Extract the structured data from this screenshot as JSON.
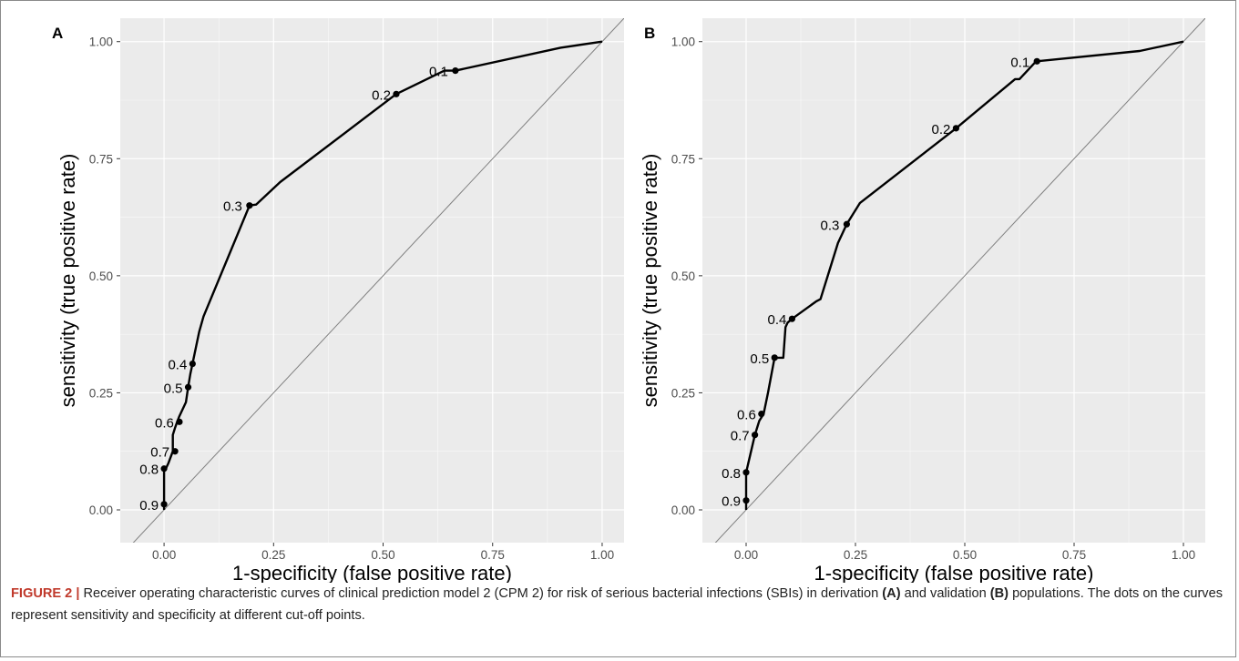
{
  "caption": {
    "label": "FIGURE 2 |",
    "part1": " Receiver operating characteristic curves of clinical prediction model 2 (CPM 2) for risk of serious bacterial infections (SBIs) in derivation ",
    "ref_a": "(A)",
    "part2": " and validation ",
    "ref_b": "(B)",
    "part3": " populations. The dots on the curves represent sensitivity and specificity at different cut-off points."
  },
  "colors": {
    "panel_bg": "#ebebeb",
    "grid_major": "#ffffff",
    "curve": "#000000",
    "diagonal": "#7f7f7f",
    "caption_label": "#c0392b"
  },
  "chart_data": [
    {
      "type": "line",
      "panel_label": "A",
      "xlabel": "1-specificity (false positive rate)",
      "ylabel": "sensitivity (true positive rate)",
      "xlim": [
        -0.1,
        1.05
      ],
      "ylim": [
        -0.07,
        1.05
      ],
      "xticks": [
        0,
        0.25,
        0.5,
        0.75,
        1
      ],
      "xtick_labels": [
        "0.00",
        "0.25",
        "0.50",
        "0.75",
        "1.00"
      ],
      "yticks": [
        0,
        0.25,
        0.5,
        0.75,
        1
      ],
      "ytick_labels": [
        "0.00",
        "0.25",
        "0.50",
        "0.75",
        "1.00"
      ],
      "grid": true,
      "reference_line": "diagonal",
      "curve": {
        "x": [
          0,
          0,
          0,
          0.005,
          0.01,
          0.02,
          0.02,
          0.025,
          0.03,
          0.035,
          0.05,
          0.055,
          0.06,
          0.065,
          0.08,
          0.09,
          0.195,
          0.21,
          0.265,
          0.53,
          0.64,
          0.665,
          0.905,
          1
        ],
        "y": [
          0,
          0.012,
          0.088,
          0.09,
          0.1,
          0.125,
          0.16,
          0.175,
          0.188,
          0.2,
          0.23,
          0.262,
          0.29,
          0.312,
          0.38,
          0.413,
          0.65,
          0.652,
          0.7,
          0.888,
          0.938,
          0.938,
          0.987,
          1
        ]
      },
      "cutoffs": {
        "labels": [
          "0.1",
          "0.2",
          "0.3",
          "0.4",
          "0.5",
          "0.6",
          "0.7",
          "0.8",
          "0.9"
        ],
        "x": [
          0.665,
          0.53,
          0.195,
          0.065,
          0.055,
          0.035,
          0.025,
          0,
          0
        ],
        "y": [
          0.938,
          0.888,
          0.65,
          0.312,
          0.262,
          0.188,
          0.125,
          0.088,
          0.012
        ]
      }
    },
    {
      "type": "line",
      "panel_label": "B",
      "xlabel": "1-specificity (false positive rate)",
      "ylabel": "sensitivity (true positive rate)",
      "xlim": [
        -0.1,
        1.05
      ],
      "ylim": [
        -0.07,
        1.05
      ],
      "xticks": [
        0,
        0.25,
        0.5,
        0.75,
        1
      ],
      "xtick_labels": [
        "0.00",
        "0.25",
        "0.50",
        "0.75",
        "1.00"
      ],
      "yticks": [
        0,
        0.25,
        0.5,
        0.75,
        1
      ],
      "ytick_labels": [
        "0.00",
        "0.25",
        "0.50",
        "0.75",
        "1.00"
      ],
      "grid": true,
      "reference_line": "diagonal",
      "curve": {
        "x": [
          0,
          0,
          0,
          0.01,
          0.02,
          0.025,
          0.03,
          0.04,
          0.05,
          0.065,
          0.085,
          0.09,
          0.095,
          0.105,
          0.16,
          0.17,
          0.21,
          0.23,
          0.26,
          0.48,
          0.615,
          0.625,
          0.66,
          0.665,
          0.9,
          1
        ],
        "y": [
          0,
          0.02,
          0.08,
          0.12,
          0.16,
          0.175,
          0.19,
          0.205,
          0.25,
          0.325,
          0.325,
          0.39,
          0.4,
          0.408,
          0.445,
          0.45,
          0.57,
          0.61,
          0.655,
          0.815,
          0.92,
          0.92,
          0.955,
          0.958,
          0.98,
          1
        ]
      },
      "cutoffs": {
        "labels": [
          "0.1",
          "0.2",
          "0.3",
          "0.4",
          "0.5",
          "0.6",
          "0.7",
          "0.8",
          "0.9"
        ],
        "x": [
          0.665,
          0.48,
          0.23,
          0.105,
          0.065,
          0.035,
          0.02,
          0,
          0
        ],
        "y": [
          0.958,
          0.815,
          0.61,
          0.408,
          0.325,
          0.205,
          0.16,
          0.08,
          0.02
        ]
      }
    }
  ]
}
